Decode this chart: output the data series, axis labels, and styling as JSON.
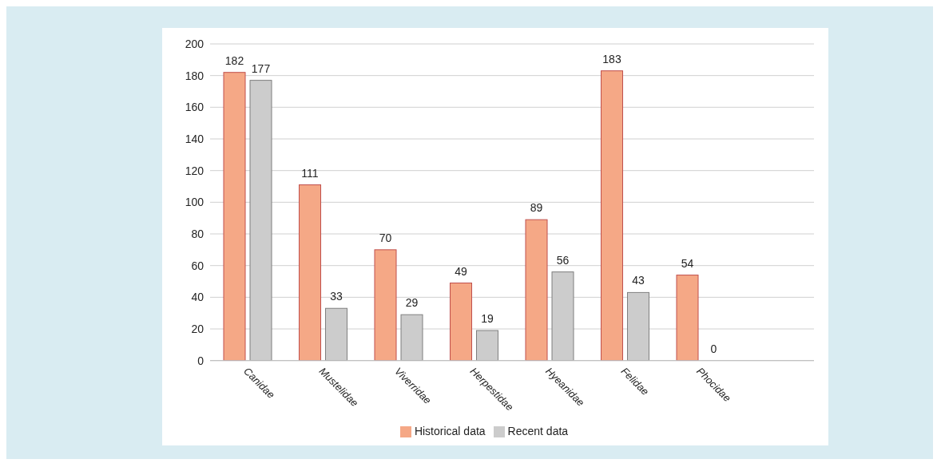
{
  "chart_data": {
    "type": "bar",
    "categories": [
      "Canidae",
      "Mustelidae",
      "Viverridae",
      "Herpestidae",
      "Hyeanidae",
      "Felidae",
      "Phocidae",
      null
    ],
    "series": [
      {
        "name": "Historical data",
        "color": "#f5a886",
        "values": [
          182,
          111,
          70,
          49,
          89,
          183,
          54,
          null
        ]
      },
      {
        "name": "Recent data",
        "color": "#cccccc",
        "values": [
          177,
          33,
          29,
          19,
          56,
          43,
          0,
          null
        ]
      }
    ],
    "ylim": [
      0,
      200
    ],
    "yticks": [
      0,
      20,
      40,
      60,
      80,
      100,
      120,
      140,
      160,
      180,
      200
    ],
    "grid": "y",
    "legend": "bottom",
    "data_labels": true
  }
}
